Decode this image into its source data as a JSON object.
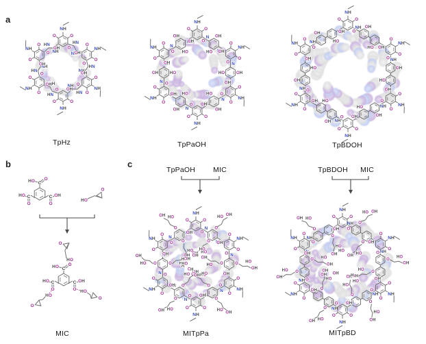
{
  "figure": {
    "background": "#ffffff",
    "panel_labels": {
      "a": "a",
      "b": "b",
      "c": "c"
    }
  },
  "panel_a": {
    "structures": [
      {
        "name": "TpHz",
        "units": 6,
        "linker": "hydrazide"
      },
      {
        "name": "TpPaOH",
        "units": 6,
        "linker": "hydroxy-phenylene"
      },
      {
        "name": "TpBDOH",
        "units": 6,
        "linker": "dihydroxy-biphenyl"
      }
    ]
  },
  "panel_b": {
    "product_name": "MIC"
  },
  "panel_c": {
    "reactions": [
      {
        "cof": "TpPaOH",
        "modifier": "MIC",
        "product": "MITpPa"
      },
      {
        "cof": "TpBDOH",
        "modifier": "MIC",
        "product": "MITpBD"
      }
    ]
  },
  "atom_labels": {
    "oxygen": "O",
    "nitrogen": "N",
    "hydrogen": "H",
    "carbon": "C",
    "hydroxyl": "OH",
    "hydroxyl_rev": "HO",
    "amine": "NH",
    "amine_rev": "HN"
  },
  "colors": {
    "oxygen": "#a8309c",
    "nitrogen": "#3a4cc4",
    "bond": "#707070",
    "dark": "#474747",
    "caption": "#141414",
    "arrow": "#4a4a4a",
    "blob_gray_in": "#f6f6f6",
    "blob_gray_out": "#dddddd",
    "blob_purple_in": "#eadef5",
    "blob_purple_out": "#c5addb",
    "blob_blue_in": "#e3e9fb",
    "blob_blue_out": "#bcc8ef"
  }
}
